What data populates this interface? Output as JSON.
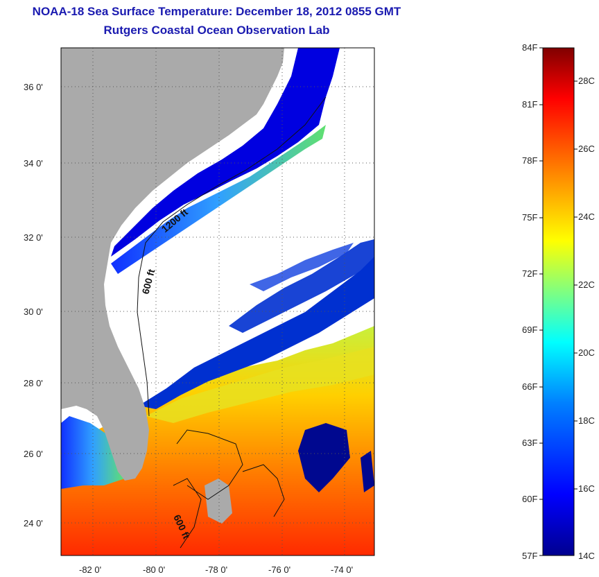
{
  "title": {
    "line1": "NOAA-18 Sea Surface Temperature:  December 18, 2012 0855 GMT",
    "line2": "Rutgers Coastal Ocean Observation Lab"
  },
  "axes": {
    "lat_ticks": [
      "36 0'",
      "34 0'",
      "32 0'",
      "30 0'",
      "28 0'",
      "26 0'",
      "24 0'"
    ],
    "lon_ticks": [
      "-82 0'",
      "-80 0'",
      "-78 0'",
      "-76 0'",
      "-74 0'"
    ],
    "lat_range": [
      23,
      37.1
    ],
    "lon_range": [
      -83,
      -73
    ]
  },
  "contour_labels": [
    "1200 ft",
    "600 ft",
    "600 ft"
  ],
  "colorbar": {
    "fahrenheit": [
      "84F",
      "81F",
      "78F",
      "75F",
      "72F",
      "69F",
      "66F",
      "63F",
      "60F",
      "57F"
    ],
    "celsius": [
      "28C",
      "26C",
      "24C",
      "22C",
      "20C",
      "18C",
      "16C",
      "14C"
    ],
    "range_c": [
      14,
      29
    ],
    "colormap": [
      "#00008f",
      "#0000ff",
      "#0080ff",
      "#00ffff",
      "#80ff80",
      "#ffff00",
      "#ff8000",
      "#ff0000",
      "#800000"
    ]
  },
  "colors": {
    "land": "#aaaaaa",
    "cloud": "#ffffff",
    "grid": "#555555",
    "title": "#1a1ab0"
  }
}
